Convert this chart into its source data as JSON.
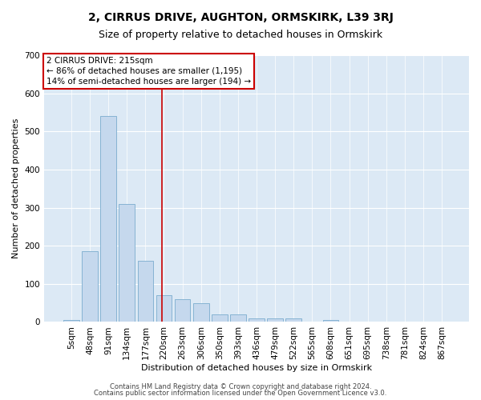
{
  "title": "2, CIRRUS DRIVE, AUGHTON, ORMSKIRK, L39 3RJ",
  "subtitle": "Size of property relative to detached houses in Ormskirk",
  "xlabel": "Distribution of detached houses by size in Ormskirk",
  "ylabel": "Number of detached properties",
  "categories": [
    "5sqm",
    "48sqm",
    "91sqm",
    "134sqm",
    "177sqm",
    "220sqm",
    "263sqm",
    "306sqm",
    "350sqm",
    "393sqm",
    "436sqm",
    "479sqm",
    "522sqm",
    "565sqm",
    "608sqm",
    "651sqm",
    "695sqm",
    "738sqm",
    "781sqm",
    "824sqm",
    "867sqm"
  ],
  "values": [
    5,
    185,
    540,
    310,
    160,
    70,
    60,
    50,
    20,
    20,
    10,
    10,
    10,
    0,
    5,
    0,
    0,
    0,
    0,
    0,
    0
  ],
  "bar_color": "#c5d8ed",
  "bar_edgecolor": "#7aacce",
  "background_color": "#dce9f5",
  "ylim": [
    0,
    700
  ],
  "yticks": [
    0,
    100,
    200,
    300,
    400,
    500,
    600,
    700
  ],
  "annotation_box_text": "2 CIRRUS DRIVE: 215sqm\n← 86% of detached houses are smaller (1,195)\n14% of semi-detached houses are larger (194) →",
  "footer_line1": "Contains HM Land Registry data © Crown copyright and database right 2024.",
  "footer_line2": "Contains public sector information licensed under the Open Government Licence v3.0.",
  "title_fontsize": 10,
  "subtitle_fontsize": 9,
  "axis_label_fontsize": 8,
  "tick_fontsize": 7.5,
  "annotation_fontsize": 7.5,
  "footer_fontsize": 6
}
